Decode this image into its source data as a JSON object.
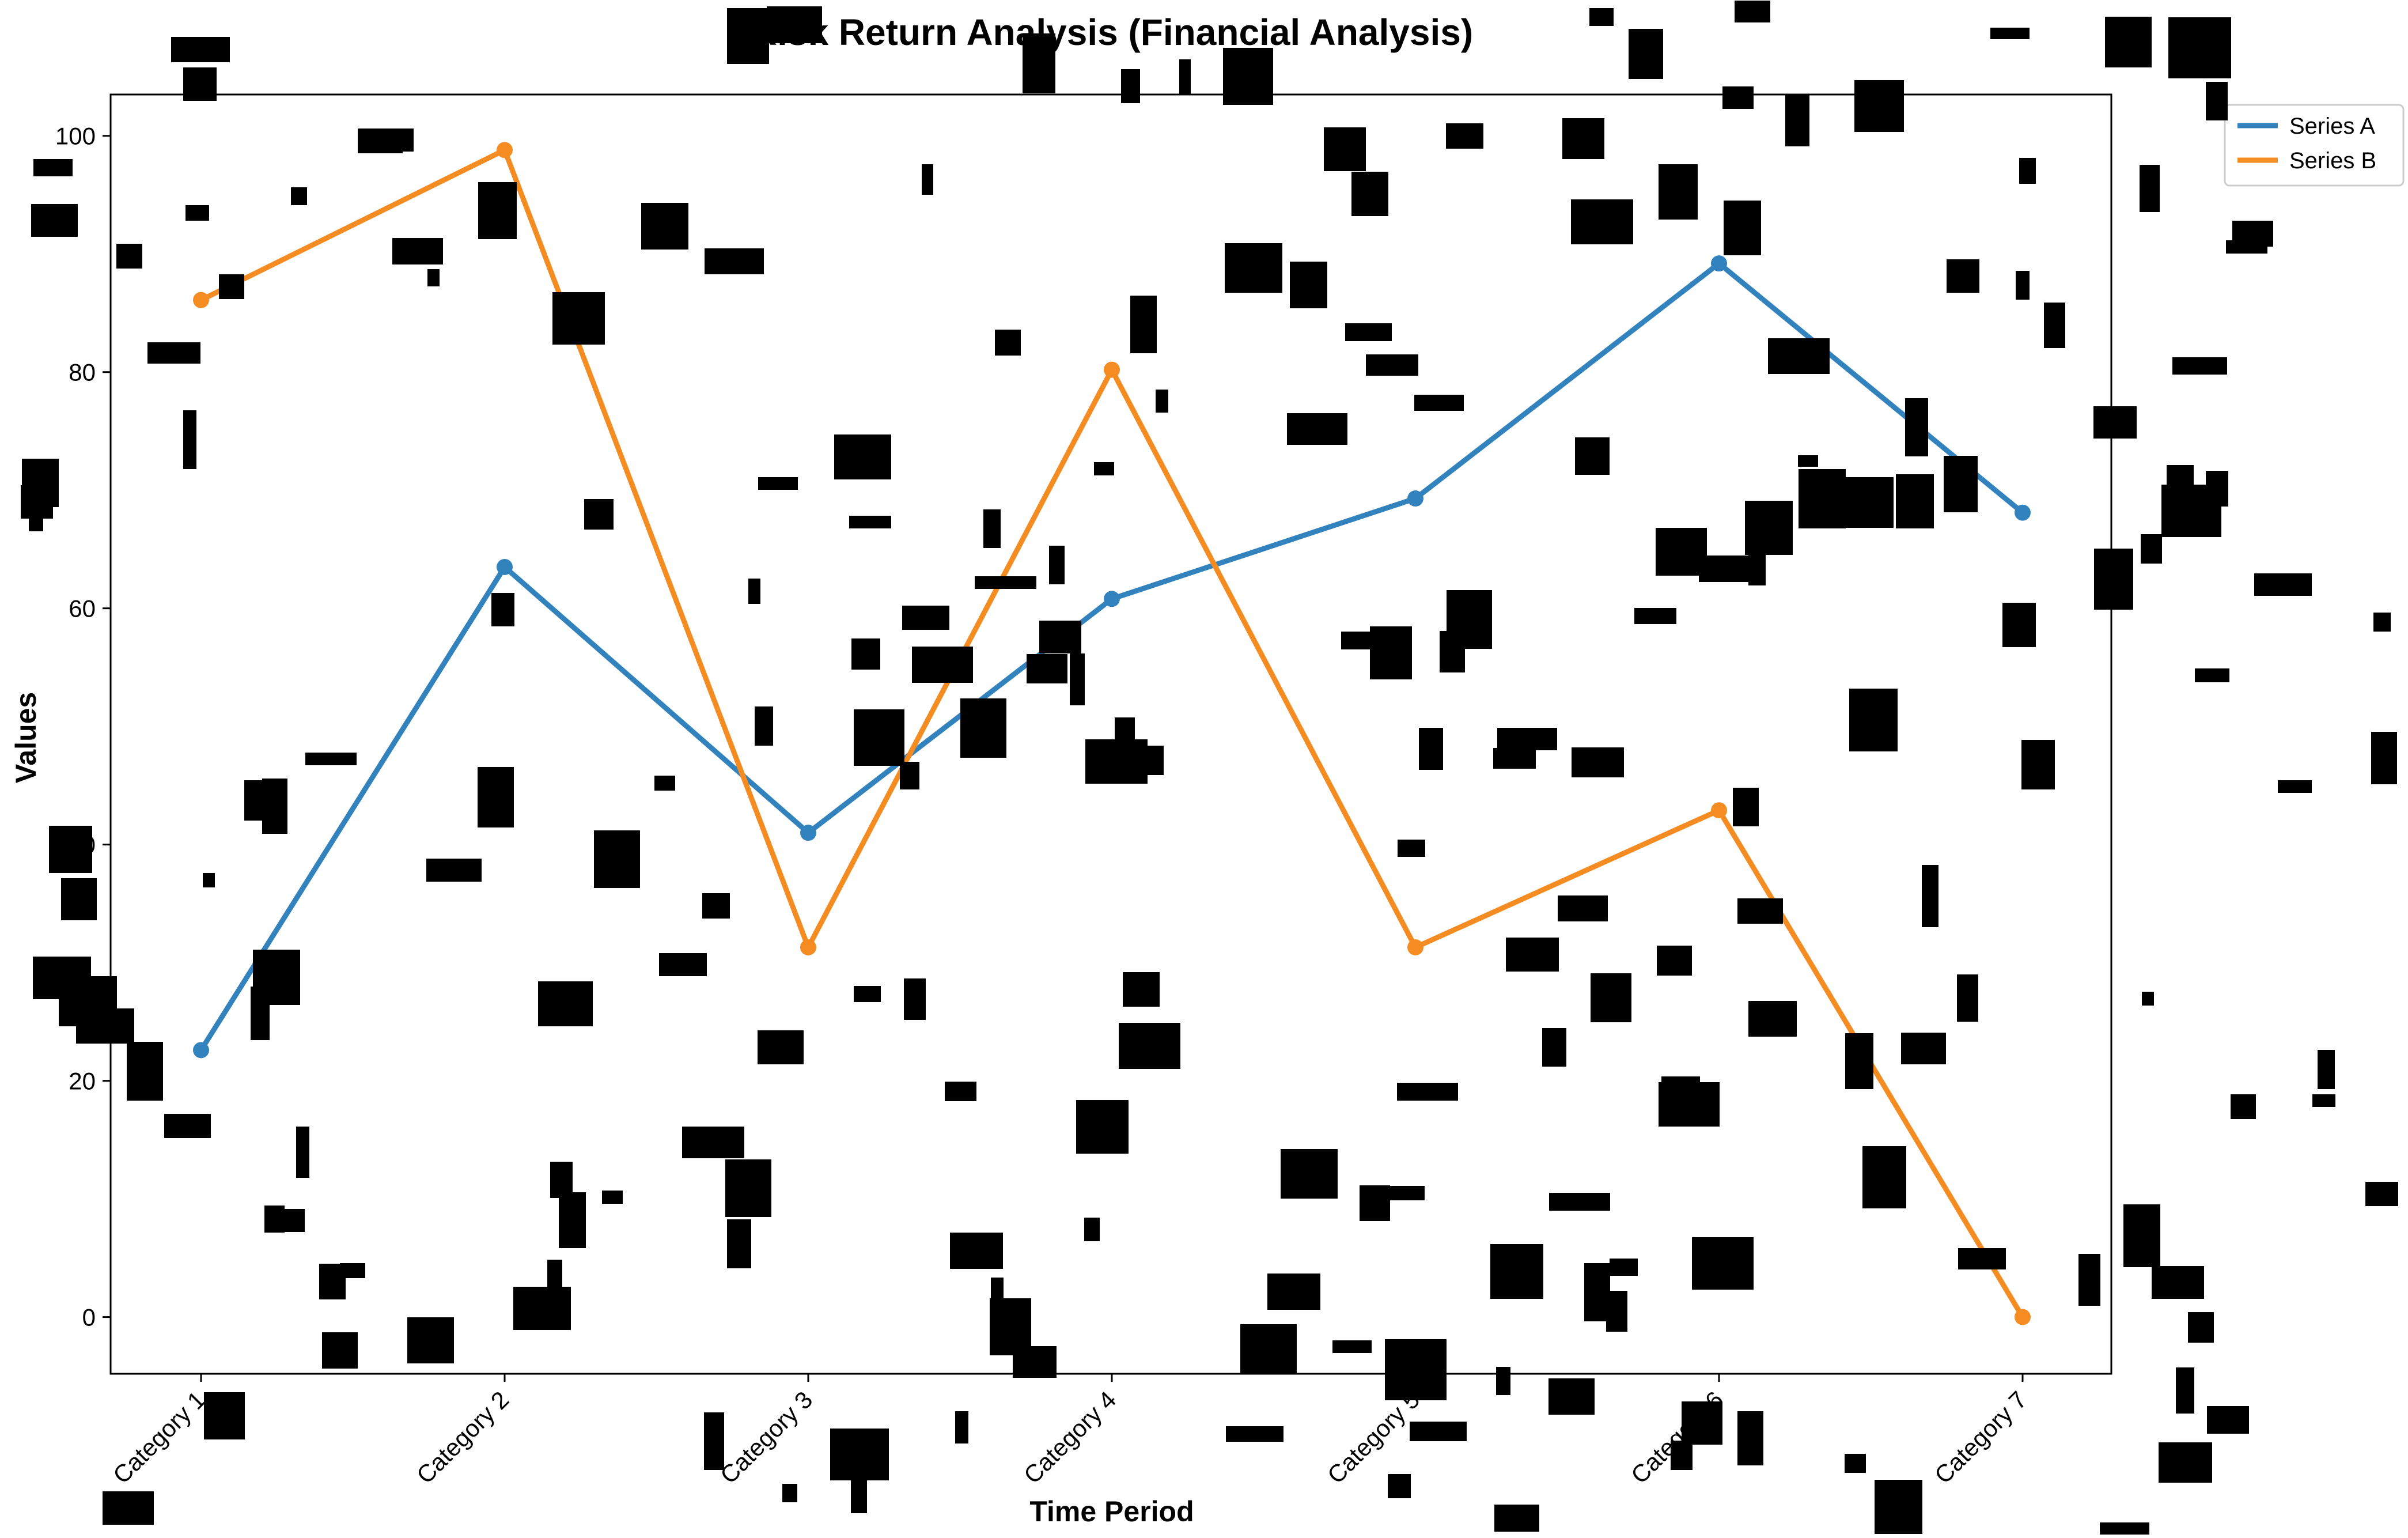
{
  "chart_data": {
    "type": "line",
    "title": "Risk Return Analysis (Financial Analysis)",
    "xlabel": "Time Period",
    "ylabel": "Values",
    "categories": [
      "Category 1",
      "Category 2",
      "Category 3",
      "Category 4",
      "Category 5",
      "Category 6",
      "Category 7"
    ],
    "series": [
      {
        "name": "Series A",
        "color": "#3282bd",
        "values": [
          22.6,
          63.5,
          41.0,
          60.8,
          69.3,
          89.2,
          68.1
        ]
      },
      {
        "name": "Series B",
        "color": "#f48c22",
        "values": [
          86.1,
          98.8,
          31.3,
          80.2,
          31.3,
          42.9,
          0.0
        ]
      }
    ],
    "ylim": [
      -4.8,
      103.5
    ],
    "yticks": [
      0,
      20,
      40,
      60,
      80,
      100
    ],
    "grid": false,
    "legend_position": "top-right",
    "occlusion": "random black rectangles overlay the figure"
  }
}
